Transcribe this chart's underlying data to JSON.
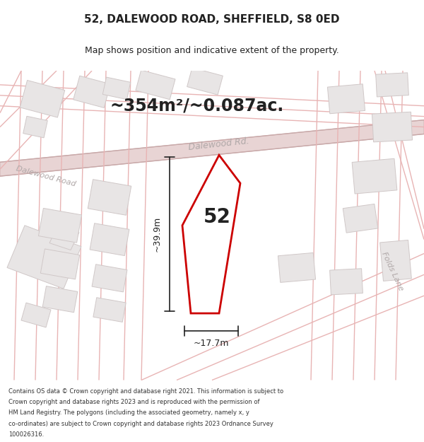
{
  "title": "52, DALEWOOD ROAD, SHEFFIELD, S8 0ED",
  "subtitle": "Map shows position and indicative extent of the property.",
  "area_text": "~354m²/~0.087ac.",
  "number_label": "52",
  "dim_width": "~17.7m",
  "dim_height": "~39.9m",
  "road_label_diagonal": "Dalewood Rd.",
  "road_label_left": "Dalewood Road",
  "road_label_right": "Folds Lane",
  "footer_lines": [
    "Contains OS data © Crown copyright and database right 2021. This information is subject to",
    "Crown copyright and database rights 2023 and is reproduced with the permission of",
    "HM Land Registry. The polygons (including the associated geometry, namely x, y",
    "co-ordinates) are subject to Crown copyright and database rights 2023 Ordnance Survey",
    "100026316."
  ],
  "map_bg": "#f0eeee",
  "building_fill": "#e8e5e5",
  "building_stroke": "#d0c8c8",
  "property_color": "#cc0000",
  "property_fill": "#ffffff",
  "dim_line_color": "#222222",
  "text_color": "#222222",
  "footer_color": "#333333",
  "road_line_color": "#e8b4b4"
}
